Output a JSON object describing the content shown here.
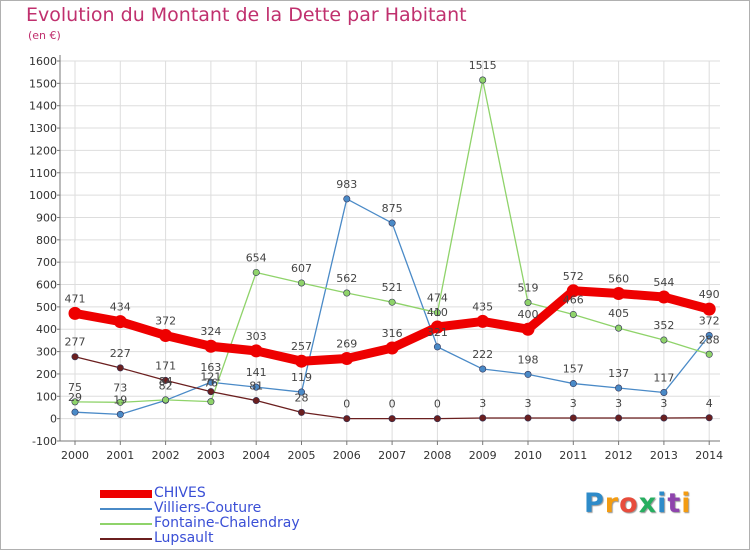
{
  "header": {
    "title": "Evolution du Montant de la Dette par Habitant",
    "subtitle": "(en €)"
  },
  "logo": {
    "letters": [
      "P",
      "r",
      "o",
      "x",
      "i",
      "t",
      "i"
    ],
    "colors": [
      "#2e8bc9",
      "#f39c12",
      "#e74c3c",
      "#27ae60",
      "#2e8bc9",
      "#8e44ad",
      "#f39c12"
    ]
  },
  "colors": {
    "title": "#c0306e",
    "grid": "#dddddd",
    "axis": "#777777",
    "tick_text": "#333333",
    "label_text": "#444444",
    "legend_text": "#3a4fd6"
  },
  "chart_data": {
    "type": "line",
    "x": [
      "2000",
      "2001",
      "2002",
      "2003",
      "2004",
      "2005",
      "2006",
      "2007",
      "2008",
      "2009",
      "2010",
      "2011",
      "2012",
      "2013",
      "2014"
    ],
    "yticks": [
      "-100",
      "0",
      "100",
      "200",
      "300",
      "400",
      "500",
      "600",
      "700",
      "800",
      "900",
      "1000",
      "1100",
      "1200",
      "1300",
      "1400",
      "1500",
      "1600"
    ],
    "ylim": [
      -100,
      1600
    ],
    "grid": true,
    "legend_position": "bottom-left",
    "series": [
      {
        "name": "CHIVES",
        "color": "#ee0000",
        "values": [
          471,
          434,
          372,
          324,
          303,
          257,
          269,
          316,
          410,
          435,
          400,
          572,
          560,
          544,
          490
        ],
        "labels": [
          "471",
          "434",
          "372",
          "324",
          "303",
          "257",
          "269",
          "316",
          "410",
          "435",
          "400",
          "572",
          "560",
          "544",
          "490"
        ]
      },
      {
        "name": "Villiers-Couture",
        "color": "#4a8ac7",
        "values": [
          29,
          19,
          82,
          163,
          141,
          119,
          983,
          875,
          321,
          222,
          198,
          157,
          137,
          117,
          372
        ],
        "labels": [
          "29",
          "19",
          "82",
          "163",
          "141",
          "119",
          "983",
          "875",
          "321",
          "222",
          "198",
          "157",
          "137",
          "117",
          "372"
        ]
      },
      {
        "name": "Fontaine-Chalendray",
        "color": "#8fd36a",
        "values": [
          75,
          73,
          84,
          76,
          654,
          607,
          562,
          521,
          474,
          1515,
          519,
          466,
          405,
          352,
          288
        ],
        "labels": [
          "75",
          "73",
          "84",
          "76",
          "654",
          "607",
          "562",
          "521",
          "474",
          "1515",
          "519",
          "466",
          "405",
          "352",
          "288"
        ]
      },
      {
        "name": "Lupsault",
        "color": "#6b1f1f",
        "values": [
          277,
          227,
          171,
          121,
          81,
          28,
          0,
          0,
          0,
          3,
          3,
          3,
          3,
          3,
          4
        ],
        "labels": [
          "277",
          "227",
          "171",
          "121",
          "81",
          "28",
          "0",
          "0",
          "0",
          "3",
          "3",
          "3",
          "3",
          "3",
          "4"
        ]
      }
    ]
  }
}
